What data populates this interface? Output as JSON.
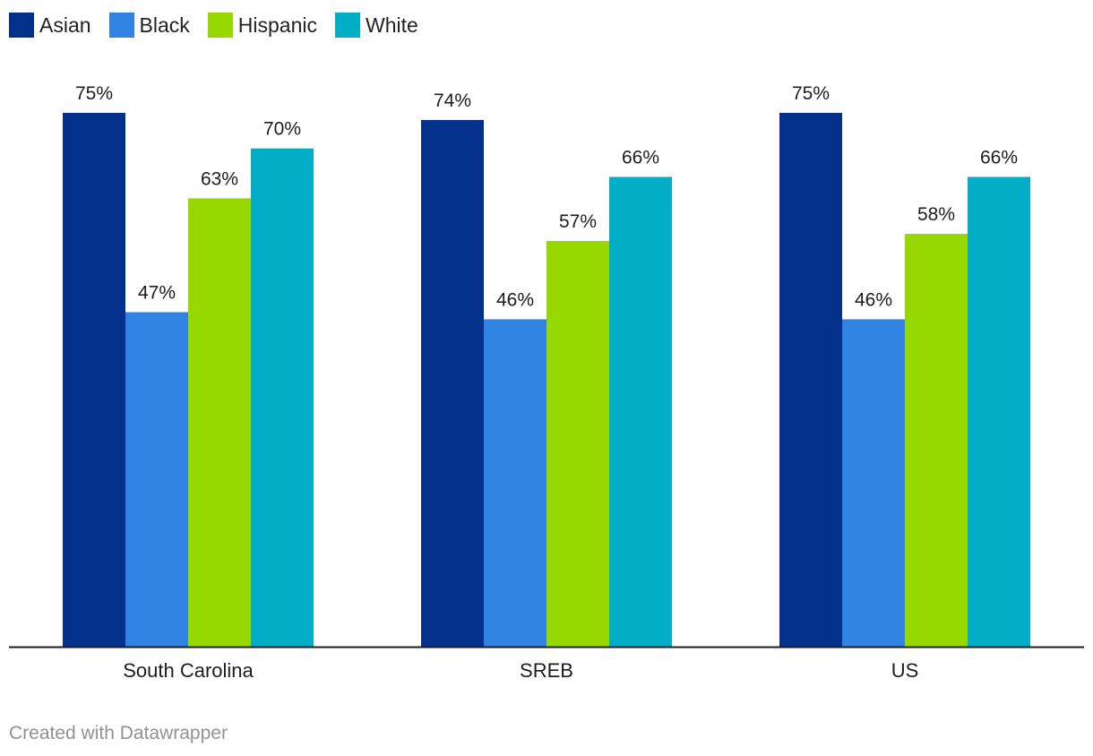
{
  "chart_data": {
    "type": "bar",
    "title": "",
    "xlabel": "",
    "ylabel": "",
    "ylim": [
      0,
      75.5
    ],
    "categories": [
      "South Carolina",
      "SREB",
      "US"
    ],
    "series": [
      {
        "name": "Asian",
        "color": "#03308a",
        "values": [
          75,
          74,
          75
        ],
        "labels": [
          "75%",
          "74%",
          "75%"
        ]
      },
      {
        "name": "Black",
        "color": "#3183e2",
        "values": [
          47,
          46,
          46
        ],
        "labels": [
          "47%",
          "46%",
          "46%"
        ]
      },
      {
        "name": "Hispanic",
        "color": "#98d801",
        "values": [
          63,
          57,
          58
        ],
        "labels": [
          "63%",
          "57%",
          "58%"
        ]
      },
      {
        "name": "White",
        "color": "#01aec6",
        "values": [
          70,
          66,
          66
        ],
        "labels": [
          "70%",
          "66%",
          "66%"
        ]
      }
    ],
    "legend": "top-left",
    "grid": false
  },
  "footer": {
    "credit": "Created with Datawrapper"
  }
}
